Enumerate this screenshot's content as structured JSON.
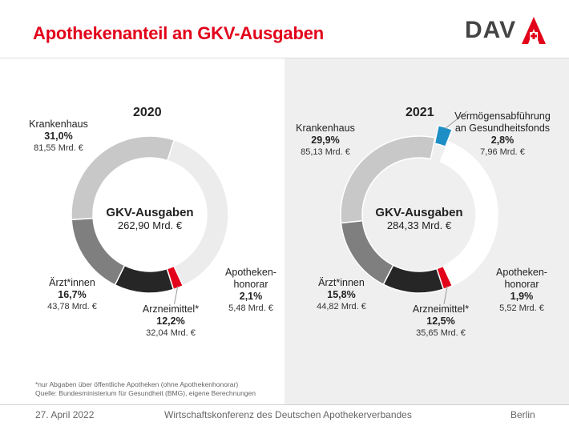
{
  "title": "Apothekenanteil an GKV-Ausgaben",
  "logo": {
    "text": "DAV"
  },
  "chart_data": [
    {
      "type": "donut",
      "year": "2020",
      "center_title": "GKV-Ausgaben",
      "center_value": "262,90 Mrd. €",
      "segments": [
        {
          "name": "Apotheken-",
          "name2": "honorar",
          "percent_label": "2,1%",
          "amount_label": "5,48 Mrd. €",
          "value": 5.48,
          "color": "#e2001a"
        },
        {
          "name": "Arzneimittel*",
          "percent_label": "12,2%",
          "amount_label": "32,04 Mrd. €",
          "value": 32.04,
          "color": "#262626"
        },
        {
          "name": "Ärzt*innen",
          "percent_label": "16,7%",
          "amount_label": "43,78 Mrd. €",
          "value": 43.78,
          "color": "#7f7f7f"
        },
        {
          "name": "Krankenhaus",
          "percent_label": "31,0%",
          "amount_label": "81,55 Mrd. €",
          "value": 81.55,
          "color": "#c8c8c8"
        },
        {
          "name": "",
          "value": 100.05,
          "color": "#ececec"
        }
      ]
    },
    {
      "type": "donut",
      "year": "2021",
      "center_title": "GKV-Ausgaben",
      "center_value": "284,33 Mrd. €",
      "segments": [
        {
          "name": "Apotheken-",
          "name2": "honorar",
          "percent_label": "1,9%",
          "amount_label": "5,52 Mrd. €",
          "value": 5.52,
          "color": "#e2001a"
        },
        {
          "name": "Arzneimittel*",
          "percent_label": "12,5%",
          "amount_label": "35,65 Mrd. €",
          "value": 35.65,
          "color": "#262626"
        },
        {
          "name": "Ärzt*innen",
          "percent_label": "15,8%",
          "amount_label": "44,82 Mrd. €",
          "value": 44.82,
          "color": "#7f7f7f"
        },
        {
          "name": "Krankenhaus",
          "percent_label": "29,9%",
          "amount_label": "85,13 Mrd. €",
          "value": 85.13,
          "color": "#c8c8c8"
        },
        {
          "name": "Vermögensabführung",
          "name2": "an Gesundheitsfonds",
          "percent_label": "2,8%",
          "amount_label": "7,96 Mrd. €",
          "value": 7.96,
          "color": "#1e8fc6",
          "exploded": true
        },
        {
          "name": "",
          "value": 105.25,
          "color": "#ffffff"
        }
      ]
    }
  ],
  "notes": {
    "line1": "*nur Abgaben über öffentliche Apotheken (ohne Apothekenhonorar)",
    "line2": "Quelle: Bundesministerium für Gesundheit (BMG), eigene Berechnungen"
  },
  "footer": {
    "date": "27. April 2022",
    "event": "Wirtschaftskonferenz  des Deutschen Apothekerverbandes",
    "place": "Berlin"
  }
}
